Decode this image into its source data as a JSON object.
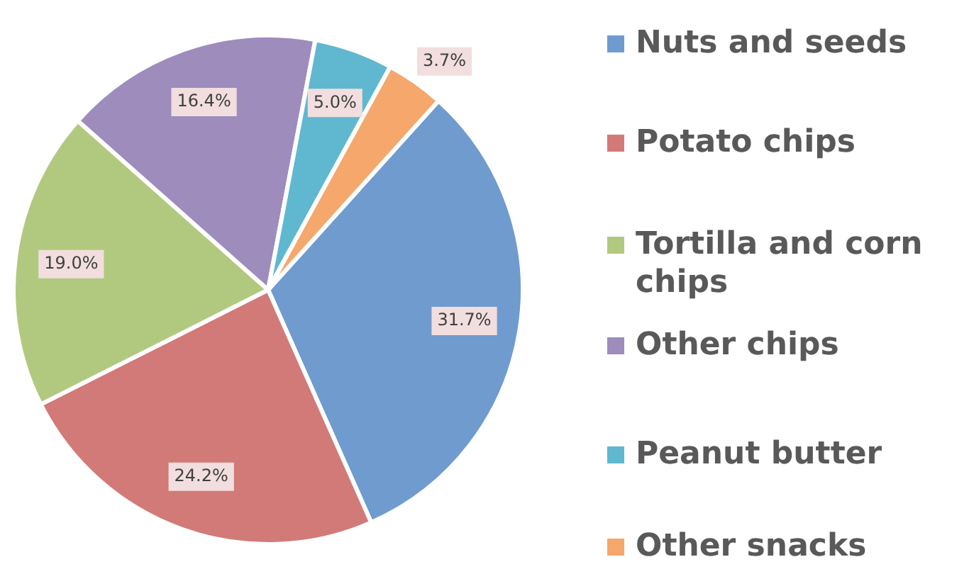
{
  "chart_data": {
    "type": "pie",
    "categories": [
      "Nuts and seeds",
      "Potato chips",
      "Tortilla and corn chips",
      "Other chips",
      "Peanut butter",
      "Other snacks"
    ],
    "values": [
      31.7,
      24.2,
      19.0,
      16.4,
      5.0,
      3.7
    ],
    "colors": [
      "#6f9bcf",
      "#d27a78",
      "#b1c97e",
      "#9e8cbd",
      "#5fb8d0",
      "#f5a76c"
    ],
    "value_labels": [
      "31.7%",
      "24.2%",
      "19.0%",
      "16.4%",
      "5.0%",
      "3.7%"
    ],
    "legend": "right"
  }
}
